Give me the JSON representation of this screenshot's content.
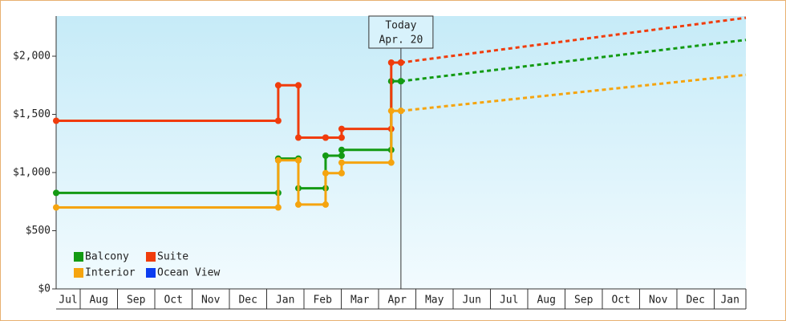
{
  "chart_data": {
    "type": "step-line",
    "xlim": [
      0.355,
      18.85
    ],
    "ylim": [
      0,
      2345
    ],
    "yticks": [
      {
        "value": 0,
        "label": "$0"
      },
      {
        "value": 500,
        "label": "$500"
      },
      {
        "value": 1000,
        "label": "$1,000"
      },
      {
        "value": 1500,
        "label": "$1,500"
      },
      {
        "value": 2000,
        "label": "$2,000"
      }
    ],
    "xticks": [
      {
        "value": 0,
        "label": "Jul"
      },
      {
        "value": 1,
        "label": "Aug"
      },
      {
        "value": 2,
        "label": "Sep"
      },
      {
        "value": 3,
        "label": "Oct"
      },
      {
        "value": 4,
        "label": "Nov"
      },
      {
        "value": 5,
        "label": "Dec"
      },
      {
        "value": 6,
        "label": "Jan"
      },
      {
        "value": 7,
        "label": "Feb"
      },
      {
        "value": 8,
        "label": "Mar"
      },
      {
        "value": 9,
        "label": "Apr"
      },
      {
        "value": 10,
        "label": "May"
      },
      {
        "value": 11,
        "label": "Jun"
      },
      {
        "value": 12,
        "label": "Jul"
      },
      {
        "value": 13,
        "label": "Aug"
      },
      {
        "value": 14,
        "label": "Sep"
      },
      {
        "value": 15,
        "label": "Oct"
      },
      {
        "value": 16,
        "label": "Nov"
      },
      {
        "value": 17,
        "label": "Dec"
      },
      {
        "value": 18,
        "label": "Jan"
      }
    ],
    "today": {
      "x": 9.6,
      "title": "Today",
      "date": "Apr. 20"
    },
    "legend": "lower-left",
    "series": [
      {
        "name": "Balcony",
        "color": "#139a13",
        "x": [
          0.355,
          6.31,
          6.85,
          7.58,
          8.01,
          9.34,
          9.6
        ],
        "values": [
          825,
          1120,
          865,
          1145,
          1195,
          1785,
          1785
        ],
        "projection": {
          "x": [
            9.6,
            18.85
          ],
          "values": [
            1785,
            2140
          ]
        }
      },
      {
        "name": "Suite",
        "color": "#f03c0c",
        "x": [
          0.355,
          6.31,
          6.85,
          7.58,
          8.01,
          9.34,
          9.6
        ],
        "values": [
          1445,
          1750,
          1300,
          1300,
          1375,
          1945,
          1945
        ],
        "projection": {
          "x": [
            9.6,
            18.85
          ],
          "values": [
            1945,
            2330
          ]
        }
      },
      {
        "name": "Interior",
        "color": "#f5a40f",
        "x": [
          0.355,
          6.31,
          6.85,
          7.58,
          8.01,
          9.34,
          9.6
        ],
        "values": [
          700,
          1105,
          725,
          995,
          1085,
          1530,
          1530
        ],
        "projection": {
          "x": [
            9.6,
            18.85
          ],
          "values": [
            1530,
            1840
          ]
        }
      },
      {
        "name": "Ocean View",
        "color": "#0b3cf0",
        "x": [],
        "values": []
      }
    ]
  }
}
